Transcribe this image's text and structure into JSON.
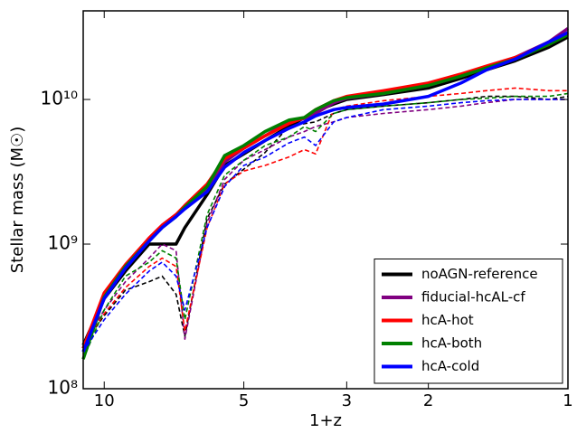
{
  "chart_data": {
    "type": "line",
    "xlabel": "1+z",
    "ylabel": "Stellar mass (M☉)",
    "xscale": "log",
    "yscale": "log",
    "legend": "lower right",
    "xlim": [
      11.1,
      1
    ],
    "ylim": [
      100000000.0,
      41000000000.0
    ],
    "xticks": [
      10,
      5,
      3,
      2,
      1
    ],
    "yticks": [
      {
        "value": 100000000.0,
        "label": "10⁸"
      },
      {
        "value": 1000000000.0,
        "label": "10⁹"
      },
      {
        "value": 10000000000.0,
        "label": "10¹⁰"
      }
    ],
    "x": [
      11.1,
      10,
      9,
      8,
      7.5,
      7,
      6.7,
      6,
      5.5,
      5,
      4.5,
      4,
      3.7,
      3.5,
      3.2,
      3,
      2.5,
      2,
      1.7,
      1.5,
      1.3,
      1.1,
      1
    ],
    "series": [
      {
        "name": "noAGN-reference",
        "color": "#000000",
        "values": [
          200000000.0,
          420000000.0,
          650000000.0,
          1000000000.0,
          1000000000.0,
          1000000000.0,
          1300000000.0,
          2200000000.0,
          3500000000.0,
          4200000000.0,
          5200000000.0,
          6500000000.0,
          7500000000.0,
          8300000000.0,
          9300000000.0,
          10000000000.0,
          10800000000.0,
          12000000000.0,
          14000000000.0,
          16000000000.0,
          18500000000.0,
          23000000000.0,
          27000000000.0
        ],
        "dashed_values": [
          200000000.0,
          320000000.0,
          480000000.0,
          550000000.0,
          600000000.0,
          450000000.0,
          230000000.0,
          1500000000.0,
          2600000000.0,
          3300000000.0,
          4300000000.0,
          6500000000.0,
          6800000000.0,
          7000000000.0,
          8000000000.0,
          8500000000.0,
          9000000000.0,
          9500000000.0,
          10000000000.0,
          10500000000.0,
          10500000000.0,
          10000000000.0,
          10500000000.0
        ]
      },
      {
        "name": "fiducial-hcAL-cf",
        "color": "#800080",
        "values": [
          190000000.0,
          450000000.0,
          700000000.0,
          1100000000.0,
          1350000000.0,
          1600000000.0,
          1800000000.0,
          2400000000.0,
          3700000000.0,
          4600000000.0,
          5600000000.0,
          7000000000.0,
          7400000000.0,
          8000000000.0,
          9500000000.0,
          10200000000.0,
          11000000000.0,
          12500000000.0,
          14500000000.0,
          16500000000.0,
          19500000000.0,
          25000000000.0,
          31000000000.0
        ],
        "dashed_values": [
          200000000.0,
          350000000.0,
          550000000.0,
          800000000.0,
          1000000000.0,
          900000000.0,
          220000000.0,
          1400000000.0,
          2800000000.0,
          3800000000.0,
          4500000000.0,
          5500000000.0,
          6000000000.0,
          6500000000.0,
          7000000000.0,
          7500000000.0,
          8000000000.0,
          8500000000.0,
          9000000000.0,
          9500000000.0,
          10000000000.0,
          10000000000.0,
          10000000000.0
        ]
      },
      {
        "name": "hcA-hot",
        "color": "#ff0000",
        "values": [
          190000000.0,
          460000000.0,
          720000000.0,
          1100000000.0,
          1350000000.0,
          1600000000.0,
          1850000000.0,
          2600000000.0,
          3900000000.0,
          4600000000.0,
          5600000000.0,
          6800000000.0,
          7500000000.0,
          8500000000.0,
          9800000000.0,
          10500000000.0,
          11500000000.0,
          13000000000.0,
          15000000000.0,
          17000000000.0,
          19500000000.0,
          24000000000.0,
          29000000000.0
        ],
        "dashed_values": [
          200000000.0,
          330000000.0,
          500000000.0,
          700000000.0,
          800000000.0,
          700000000.0,
          250000000.0,
          1300000000.0,
          2600000000.0,
          3200000000.0,
          3500000000.0,
          4000000000.0,
          4500000000.0,
          4200000000.0,
          8500000000.0,
          9000000000.0,
          9800000000.0,
          10500000000.0,
          11000000000.0,
          11500000000.0,
          12000000000.0,
          11500000000.0,
          11500000000.0
        ]
      },
      {
        "name": "hcA-both",
        "color": "#008000",
        "values": [
          160000000.0,
          430000000.0,
          700000000.0,
          1050000000.0,
          1300000000.0,
          1550000000.0,
          1800000000.0,
          2500000000.0,
          4100000000.0,
          4800000000.0,
          6000000000.0,
          7200000000.0,
          7500000000.0,
          8500000000.0,
          9800000000.0,
          10300000000.0,
          11000000000.0,
          12500000000.0,
          14500000000.0,
          16500000000.0,
          19000000000.0,
          24000000000.0,
          28000000000.0
        ],
        "dashed_values": [
          160000000.0,
          350000000.0,
          600000000.0,
          750000000.0,
          900000000.0,
          800000000.0,
          300000000.0,
          1600000000.0,
          3000000000.0,
          3800000000.0,
          4800000000.0,
          5500000000.0,
          6500000000.0,
          6000000000.0,
          8000000000.0,
          8500000000.0,
          9000000000.0,
          9500000000.0,
          10000000000.0,
          10200000000.0,
          10500000000.0,
          10500000000.0,
          11000000000.0
        ]
      },
      {
        "name": "hcA-cold",
        "color": "#0000ff",
        "values": [
          180000000.0,
          420000000.0,
          680000000.0,
          1050000000.0,
          1300000000.0,
          1550000000.0,
          1750000000.0,
          2300000000.0,
          3400000000.0,
          4300000000.0,
          5200000000.0,
          6300000000.0,
          7000000000.0,
          7700000000.0,
          8500000000.0,
          8800000000.0,
          9300000000.0,
          10500000000.0,
          13000000000.0,
          16000000000.0,
          19000000000.0,
          25000000000.0,
          29000000000.0
        ],
        "dashed_values": [
          180000000.0,
          300000000.0,
          450000000.0,
          650000000.0,
          750000000.0,
          600000000.0,
          350000000.0,
          1300000000.0,
          2500000000.0,
          3500000000.0,
          4000000000.0,
          5000000000.0,
          5500000000.0,
          4800000000.0,
          7000000000.0,
          7500000000.0,
          8500000000.0,
          9000000000.0,
          9500000000.0,
          9800000000.0,
          10000000000.0,
          10000000000.0,
          10000000000.0
        ]
      }
    ]
  }
}
